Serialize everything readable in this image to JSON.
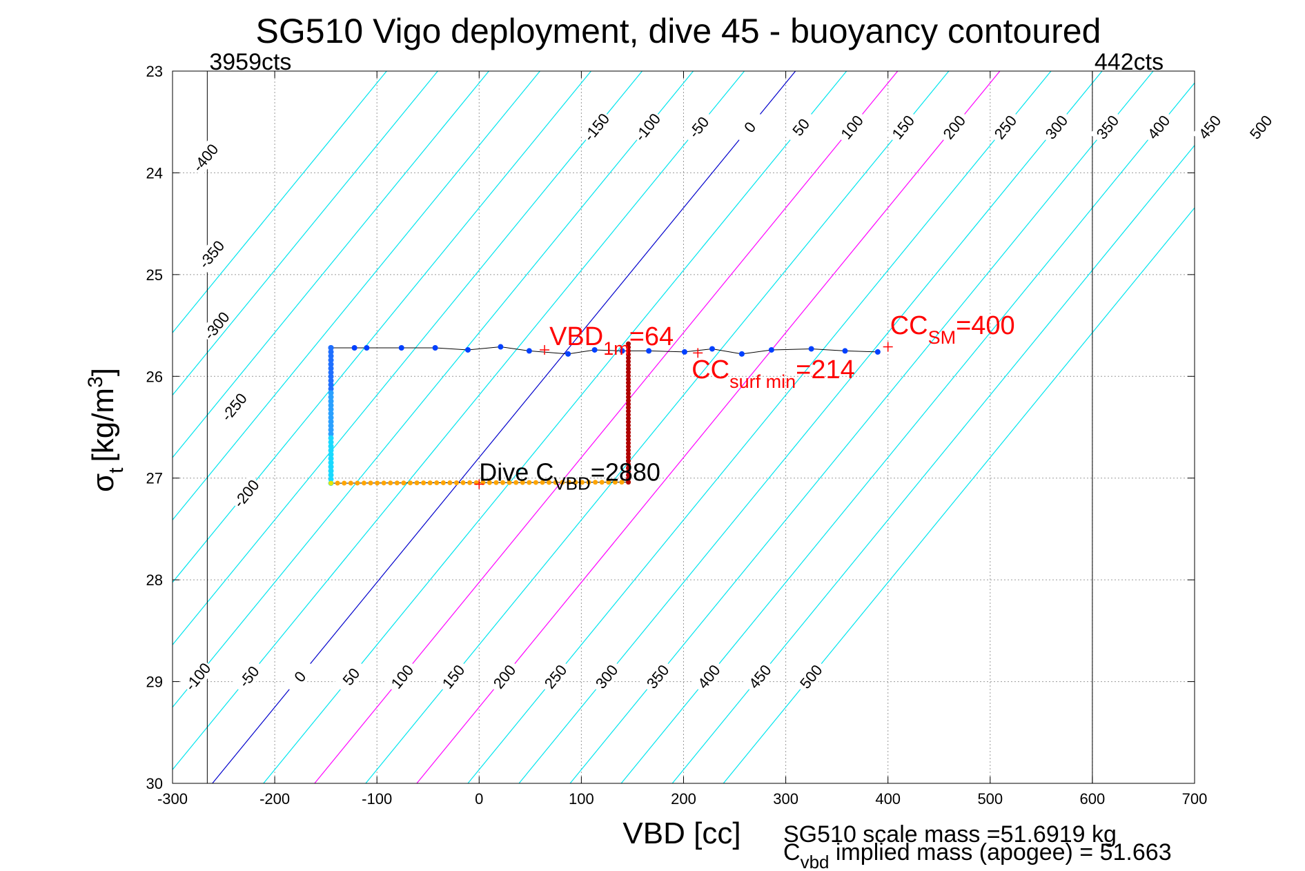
{
  "chart_data": {
    "type": "scatter",
    "title": "SG510 Vigo deployment, dive 45 - buoyancy contoured",
    "xlabel": "VBD [cc]",
    "ylabel_main": "σ",
    "ylabel_sub": "t",
    "ylabel_unit": "[kg/m",
    "ylabel_sup": "3",
    "ylabel_close": "]",
    "xlim": [
      -300,
      700
    ],
    "ylim": [
      23,
      30
    ],
    "y_reversed": true,
    "grid": true,
    "xticks": [
      -300,
      -200,
      -100,
      0,
      100,
      200,
      300,
      400,
      500,
      600,
      700
    ],
    "yticks": [
      23,
      24,
      25,
      26,
      27,
      28,
      29,
      30
    ],
    "contour_levels": [
      -400,
      -350,
      -300,
      -250,
      -200,
      -150,
      -100,
      -50,
      0,
      50,
      100,
      150,
      200,
      250,
      300,
      350,
      400,
      450,
      500
    ],
    "contour_slope_vbd_per_sigma": -81.5,
    "contour_ref_sigma": 26,
    "contour_vbd_at_ref_for_zero": 65,
    "zero_contour_color": "#0000cc",
    "highlight_contours": [
      100,
      200
    ],
    "highlight_color": "#ff00ff",
    "contour_color": "#00e5ee",
    "contour_labels_top": {
      "sigma": 23.55,
      "levels": [
        -150,
        -100,
        -50,
        0,
        50,
        100,
        150,
        200,
        250,
        300,
        350,
        400,
        450,
        500
      ],
      "texts": [
        "-150",
        "-100",
        "-50",
        "0",
        "50",
        "100",
        "150",
        "200",
        "250",
        "300",
        "350",
        "400",
        "450",
        "500"
      ]
    },
    "contour_labels_left": [
      {
        "level": -400,
        "text": "-400",
        "vbd": -268,
        "sigma": 23.85
      },
      {
        "level": -350,
        "text": "-350",
        "vbd": -262,
        "sigma": 24.8
      },
      {
        "level": -300,
        "text": "-300",
        "vbd": -257,
        "sigma": 25.5
      },
      {
        "level": -250,
        "text": "-250",
        "vbd": -240,
        "sigma": 26.3
      },
      {
        "level": -200,
        "text": "-200",
        "vbd": -228,
        "sigma": 27.15
      }
    ],
    "contour_labels_bottom": {
      "sigma": 28.95,
      "levels": [
        -100,
        -50,
        0,
        50,
        100,
        150,
        200,
        250,
        300,
        350,
        400,
        450,
        500
      ],
      "texts": [
        "-100",
        "-50",
        "0",
        "50",
        "100",
        "150",
        "200",
        "250",
        "300",
        "350",
        "400",
        "450",
        "500"
      ]
    },
    "vertical_lines": [
      {
        "vbd": -266,
        "label": "3959cts"
      },
      {
        "vbd": 600,
        "label": "442cts"
      }
    ],
    "series": [
      {
        "name": "surface-leg",
        "color": "#0040ff",
        "points": [
          [
            -145,
            25.72
          ],
          [
            -122,
            25.72
          ],
          [
            -110,
            25.72
          ],
          [
            -76,
            25.72
          ],
          [
            -43,
            25.72
          ],
          [
            -11,
            25.74
          ],
          [
            21,
            25.71
          ],
          [
            49,
            25.75
          ],
          [
            87,
            25.78
          ],
          [
            113,
            25.74
          ],
          [
            140,
            25.75
          ],
          [
            166,
            25.75
          ],
          [
            201,
            25.76
          ],
          [
            228,
            25.73
          ],
          [
            257,
            25.78
          ],
          [
            286,
            25.74
          ],
          [
            325,
            25.73
          ],
          [
            358,
            25.75
          ],
          [
            390,
            25.76
          ]
        ]
      },
      {
        "name": "dive-descent",
        "colors": [
          "#1f6fff",
          "#2aa0ff",
          "#19d9ff"
        ],
        "vbd": -145,
        "sigma_from": 25.72,
        "sigma_to": 27.05,
        "count": 34
      },
      {
        "name": "apogee-leg",
        "color": "#ffa500",
        "vbd_from": -145,
        "vbd_to": 146,
        "sigma_from": 27.05,
        "sigma_to": 27.04,
        "count": 46
      },
      {
        "name": "climb",
        "color": "#b00000",
        "vbd": 146,
        "sigma_from": 27.04,
        "sigma_to": 25.68,
        "count": 40
      }
    ],
    "annotations": {
      "vbd1m": {
        "main": "VBD",
        "sub": "1m",
        "tail": "=64",
        "vbd": 64,
        "sigma": 25.72,
        "color": "#ff0000"
      },
      "cc_surf_min": {
        "main": "CC",
        "sub": "surf min",
        "tail": "=214",
        "vbd": 214,
        "sigma": 25.78,
        "color": "#ff0000"
      },
      "cc_sm": {
        "main": "CC",
        "sub": "SM",
        "tail": "=400",
        "vbd": 400,
        "sigma": 25.76,
        "color": "#ff0000"
      },
      "dive_cvbd": {
        "main": "Dive C",
        "sub": "VBD",
        "tail": "=2880",
        "vbd": 0,
        "sigma": 27.04,
        "color": "#000000"
      }
    },
    "footer": {
      "scale_mass": "SG510 scale mass =51.6919 kg",
      "implied_main": "C",
      "implied_sub": "vbd",
      "implied_tail": " implied mass (apogee) = 51.663"
    }
  }
}
